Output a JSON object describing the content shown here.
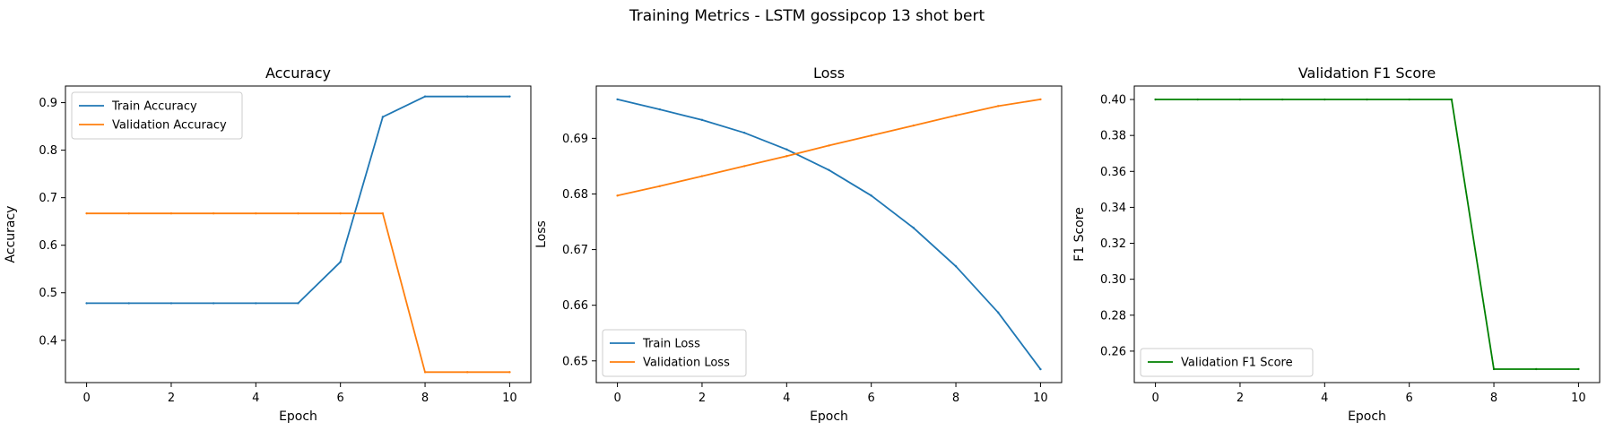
{
  "figure": {
    "title": "Training Metrics - LSTM gossipcop 13 shot bert"
  },
  "chart_data": [
    {
      "type": "line",
      "title": "Accuracy",
      "xlabel": "Epoch",
      "ylabel": "Accuracy",
      "xlim": [
        -0.5,
        10.5
      ],
      "ylim": [
        0.311,
        0.935
      ],
      "xticks": [
        0,
        2,
        4,
        6,
        8,
        10
      ],
      "yticks": [
        0.4,
        0.5,
        0.6,
        0.7,
        0.8,
        0.9
      ],
      "ytick_labels": [
        "0.4",
        "0.5",
        "0.6",
        "0.7",
        "0.8",
        "0.9"
      ],
      "legend_position": "upper-left",
      "x": [
        0,
        1,
        2,
        3,
        4,
        5,
        6,
        7,
        8,
        9,
        10
      ],
      "series": [
        {
          "name": "Train Accuracy",
          "color": "#1f77b4",
          "values": [
            0.478,
            0.478,
            0.478,
            0.478,
            0.478,
            0.478,
            0.565,
            0.87,
            0.913,
            0.913,
            0.913
          ]
        },
        {
          "name": "Validation Accuracy",
          "color": "#ff7f0e",
          "values": [
            0.667,
            0.667,
            0.667,
            0.667,
            0.667,
            0.667,
            0.667,
            0.667,
            0.333,
            0.333,
            0.333
          ]
        }
      ]
    },
    {
      "type": "line",
      "title": "Loss",
      "xlabel": "Epoch",
      "ylabel": "Loss",
      "xlim": [
        -0.5,
        10.5
      ],
      "ylim": [
        0.6461,
        0.6994
      ],
      "xticks": [
        0,
        2,
        4,
        6,
        8,
        10
      ],
      "yticks": [
        0.65,
        0.66,
        0.67,
        0.68,
        0.69
      ],
      "ytick_labels": [
        "0.65",
        "0.66",
        "0.67",
        "0.68",
        "0.69"
      ],
      "legend_position": "lower-left",
      "x": [
        0,
        1,
        2,
        3,
        4,
        5,
        6,
        7,
        8,
        9,
        10
      ],
      "series": [
        {
          "name": "Train Loss",
          "color": "#1f77b4",
          "values": [
            0.697,
            0.6952,
            0.6933,
            0.691,
            0.688,
            0.6843,
            0.6797,
            0.6739,
            0.667,
            0.6587,
            0.6485
          ]
        },
        {
          "name": "Validation Loss",
          "color": "#ff7f0e",
          "values": [
            0.6797,
            0.6814,
            0.6832,
            0.685,
            0.6868,
            0.6887,
            0.6905,
            0.6923,
            0.6941,
            0.6958,
            0.697
          ]
        }
      ]
    },
    {
      "type": "line",
      "title": "Validation F1 Score",
      "xlabel": "Epoch",
      "ylabel": "F1 Score",
      "xlim": [
        -0.5,
        10.5
      ],
      "ylim": [
        0.2425,
        0.4075
      ],
      "xticks": [
        0,
        2,
        4,
        6,
        8,
        10
      ],
      "yticks": [
        0.26,
        0.28,
        0.3,
        0.32,
        0.34,
        0.36,
        0.38,
        0.4
      ],
      "ytick_labels": [
        "0.26",
        "0.28",
        "0.30",
        "0.32",
        "0.34",
        "0.36",
        "0.38",
        "0.40"
      ],
      "legend_position": "lower-left",
      "x": [
        0,
        1,
        2,
        3,
        4,
        5,
        6,
        7,
        8,
        9,
        10
      ],
      "series": [
        {
          "name": "Validation F1 Score",
          "color": "#008000",
          "values": [
            0.4,
            0.4,
            0.4,
            0.4,
            0.4,
            0.4,
            0.4,
            0.4,
            0.25,
            0.25,
            0.25
          ]
        }
      ]
    }
  ]
}
